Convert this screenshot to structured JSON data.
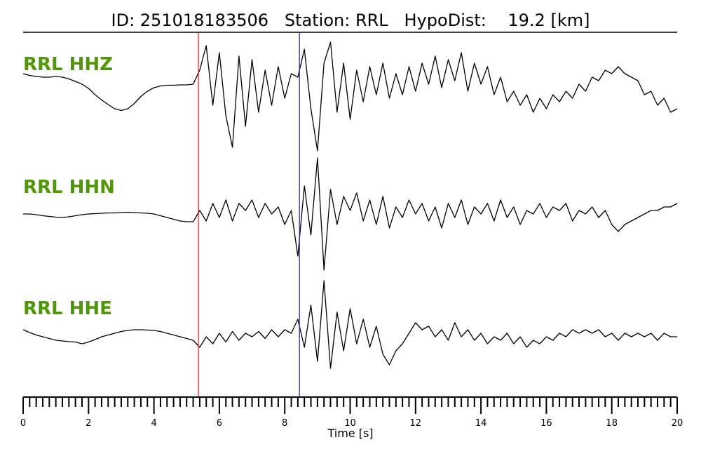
{
  "chart_data": {
    "type": "line",
    "title": "ID: 251018183506   Station: RRL   HypoDist:    19.2 [km]",
    "xlabel": "Time [s]",
    "xlim": [
      0,
      20
    ],
    "x_ticks": [
      "0",
      "2",
      "4",
      "6",
      "8",
      "10",
      "12",
      "14",
      "16",
      "18",
      "20"
    ],
    "minor_tick_step": 0.2,
    "grid": false,
    "label_color": "#4c9a00",
    "trace_color": "#000000",
    "sample_step_s": 0.2,
    "markers": [
      {
        "phase": "P",
        "time": 5.36,
        "color": "#e8302a"
      },
      {
        "phase": "S",
        "time": 8.45,
        "color": "#2b2bd6"
      }
    ],
    "series": [
      {
        "name": "RRL HHZ",
        "values": [
          0.3,
          0.25,
          0.22,
          0.2,
          0.2,
          0.22,
          0.2,
          0.15,
          0.08,
          0,
          -0.12,
          -0.3,
          -0.45,
          -0.58,
          -0.7,
          -0.75,
          -0.7,
          -0.55,
          -0.35,
          -0.2,
          -0.1,
          -0.05,
          -0.03,
          -0.03,
          -0.02,
          -0.02,
          0,
          0.4,
          1.1,
          -0.6,
          0.9,
          -0.9,
          -1.8,
          0.8,
          -1.2,
          0.7,
          -0.8,
          0.4,
          -0.6,
          0.5,
          -0.4,
          0.3,
          0.2,
          1.0,
          -0.7,
          -1.9,
          0.6,
          1.2,
          -0.8,
          0.6,
          -1.0,
          0.4,
          -0.5,
          0.5,
          -0.3,
          0.6,
          -0.4,
          0.3,
          -0.3,
          0.5,
          -0.2,
          0.6,
          0.0,
          0.8,
          -0.1,
          0.7,
          0.1,
          0.9,
          -0.2,
          0.6,
          0.0,
          0.5,
          -0.3,
          0.2,
          -0.5,
          -0.2,
          -0.6,
          -0.3,
          -0.8,
          -0.4,
          -0.7,
          -0.3,
          -0.5,
          -0.2,
          -0.4,
          0.0,
          -0.2,
          0.2,
          0.1,
          0.4,
          0.3,
          0.5,
          0.3,
          0.2,
          0.1,
          -0.3,
          -0.2,
          -0.6,
          -0.4,
          -0.8,
          -0.7
        ]
      },
      {
        "name": "RRL HHN",
        "values": [
          0,
          0,
          -0.02,
          -0.05,
          -0.07,
          -0.09,
          -0.1,
          -0.08,
          -0.05,
          -0.02,
          0,
          0.01,
          0.02,
          0.03,
          0.03,
          0.04,
          0.05,
          0.04,
          0.03,
          0.02,
          0,
          -0.05,
          -0.1,
          -0.15,
          -0.2,
          -0.22,
          -0.22,
          0.1,
          -0.2,
          0.3,
          -0.1,
          0.4,
          -0.2,
          0.3,
          0.1,
          0.4,
          -0.1,
          0.3,
          0.0,
          0.2,
          -0.3,
          0.1,
          -1.2,
          0.8,
          -0.6,
          1.6,
          -1.6,
          0.7,
          -0.3,
          0.5,
          0.1,
          0.6,
          -0.2,
          0.4,
          -0.3,
          0.5,
          -0.4,
          0.2,
          -0.1,
          0.4,
          0.0,
          0.3,
          -0.2,
          0.2,
          -0.4,
          0.3,
          -0.1,
          0.4,
          -0.3,
          0.2,
          0.0,
          0.3,
          -0.2,
          0.4,
          -0.1,
          0.2,
          -0.3,
          0.1,
          0.0,
          0.3,
          -0.1,
          0.2,
          0.1,
          0.3,
          -0.2,
          0.1,
          0.0,
          0.2,
          -0.1,
          0.1,
          -0.3,
          -0.5,
          -0.3,
          -0.2,
          -0.1,
          0.0,
          0.1,
          0.1,
          0.2,
          0.2,
          0.3
        ]
      },
      {
        "name": "RRL HHE",
        "values": [
          0.2,
          0.12,
          0.05,
          0.0,
          -0.05,
          -0.1,
          -0.12,
          -0.14,
          -0.15,
          -0.2,
          -0.15,
          -0.08,
          0,
          0.05,
          0.1,
          0.15,
          0.18,
          0.2,
          0.2,
          0.19,
          0.18,
          0.15,
          0.1,
          0.05,
          0,
          -0.05,
          -0.1,
          -0.3,
          0.0,
          -0.2,
          0.1,
          -0.15,
          0.15,
          -0.1,
          0.1,
          0.0,
          0.15,
          -0.05,
          0.2,
          0.0,
          0.2,
          0.1,
          0.5,
          -0.3,
          0.9,
          -0.7,
          1.6,
          -0.9,
          0.7,
          -0.4,
          0.8,
          -0.2,
          0.5,
          -0.3,
          0.3,
          -0.5,
          -0.8,
          -0.4,
          -0.2,
          0.1,
          0.4,
          0.2,
          0.3,
          0.0,
          0.2,
          -0.1,
          0.4,
          0.0,
          0.2,
          -0.1,
          0.1,
          -0.2,
          0.0,
          -0.1,
          0.1,
          -0.2,
          0.0,
          -0.3,
          -0.1,
          -0.2,
          0.0,
          -0.1,
          0.1,
          0.0,
          0.2,
          0.1,
          0.2,
          0.1,
          0.2,
          0.0,
          0.1,
          -0.1,
          0.1,
          0.0,
          0.1,
          0.0,
          0.1,
          -0.1,
          0.1,
          0.0,
          0.0
        ]
      }
    ]
  }
}
